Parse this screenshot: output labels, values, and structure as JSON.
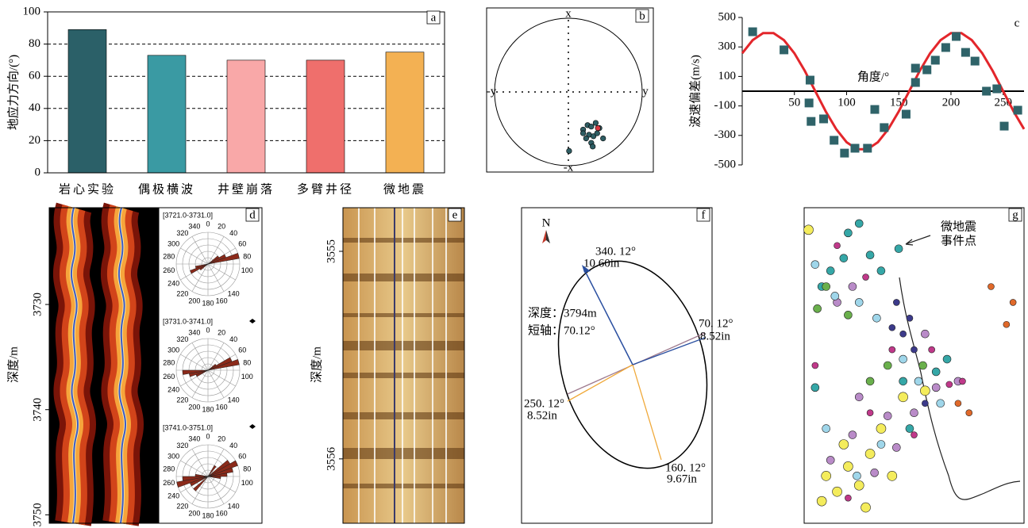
{
  "chart_data": [
    {
      "type": "bar",
      "label": "a",
      "ylabel": "地应力方向/(°)",
      "categories": [
        "岩心实验",
        "偶极横波",
        "井壁崩落",
        "多臂井径",
        "微地震"
      ],
      "values": [
        89,
        73,
        70,
        70,
        75
      ],
      "colors": [
        "#2b6068",
        "#3a9aa3",
        "#f9a8a8",
        "#ef6f6c",
        "#f3b153"
      ],
      "ylim": [
        0,
        100
      ],
      "yticks": [
        0,
        20,
        40,
        60,
        80,
        100
      ],
      "grid": true
    },
    {
      "type": "stereonet",
      "label": "b",
      "axis_labels": [
        "x",
        "-x",
        "y",
        "-y"
      ],
      "series": [
        {
          "color": "#2e5d63",
          "x": [
            0.2,
            0.26,
            0.31,
            0.37,
            0.28,
            0.24,
            0.34,
            0.39,
            0.31,
            0.2,
            0.42,
            0.47,
            0.33,
            0.01
          ],
          "values": [
            -0.51,
            -0.45,
            -0.47,
            -0.42,
            -0.58,
            -0.63,
            -0.6,
            -0.56,
            -0.69,
            -0.56,
            -0.49,
            -0.63,
            -0.74,
            -0.8
          ]
        },
        {
          "color": "#d9363e",
          "x": [
            0.4
          ],
          "values": [
            -0.49
          ]
        }
      ]
    },
    {
      "type": "scatter",
      "label": "c",
      "ylabel": "波速偏差(m/s)",
      "xlabel": "角度/°",
      "xlim": [
        0,
        270
      ],
      "xticks": [
        50,
        100,
        150,
        200,
        250
      ],
      "ylim": [
        -500,
        500
      ],
      "yticks": [
        -500,
        -300,
        -100,
        100,
        300,
        500
      ],
      "series": [
        {
          "color": "#2f6369",
          "x": [
            10,
            40,
            65,
            64,
            66,
            78,
            88,
            98,
            108,
            120,
            127,
            136,
            157,
            166,
            166,
            177,
            185,
            195,
            205,
            214,
            223,
            234,
            244,
            251,
            264
          ],
          "values": [
            403,
            280,
            75,
            -80,
            -205,
            -188,
            -333,
            -420,
            -387,
            -387,
            -124,
            -247,
            -156,
            59,
            156,
            145,
            210,
            296,
            371,
            263,
            204,
            0,
            16,
            -237,
            -129
          ]
        }
      ],
      "fit": {
        "color": "#e3262b",
        "x": [
          0,
          10,
          20,
          30,
          40,
          50,
          60,
          70,
          80,
          90,
          100,
          110,
          120,
          130,
          140,
          150,
          160,
          170,
          180,
          190,
          200,
          210,
          220,
          230,
          240,
          250,
          260,
          270
        ],
        "values": [
          257,
          346,
          394,
          394,
          346,
          257,
          137,
          0,
          -137,
          -257,
          -346,
          -394,
          -394,
          -346,
          -257,
          -137,
          0,
          137,
          257,
          346,
          394,
          394,
          346,
          257,
          137,
          0,
          -137,
          -257
        ]
      }
    },
    {
      "type": "image-log",
      "label": "d",
      "ylabel": "深度/m",
      "ylim": [
        3720.8,
        3750.8
      ],
      "yticks": [
        3730,
        3740,
        3750
      ],
      "rose": {
        "rlim": [
          0,
          5
        ],
        "color": "#8b2a1a",
        "angle_labels": [
          0,
          20,
          40,
          60,
          80,
          100,
          140,
          160,
          180,
          200,
          220,
          240,
          260,
          280,
          300,
          320,
          340
        ],
        "diagrams": [
          {
            "title": "[3721.0-3731.0]",
            "angles": [
              55,
              65,
              75,
              235,
              245,
              255
            ],
            "values": [
              2,
              3,
              5,
              1.5,
              3,
              2
            ]
          },
          {
            "title": "[3731.0-3741.0]",
            "angles": [
              55,
              65,
              75,
              245,
              255,
              265
            ],
            "values": [
              1.5,
              4,
              5,
              2,
              3,
              4
            ]
          },
          {
            "title": "[3741.0-3751.0]",
            "angles": [
              35,
              55,
              65,
              75,
              85,
              95,
              225,
              245,
              255,
              265,
              275
            ],
            "values": [
              2,
              4,
              5,
              4,
              3,
              2,
              3,
              3,
              5,
              4,
              2
            ]
          }
        ]
      }
    },
    {
      "type": "image-log",
      "label": "e",
      "ylabel": "深度/m",
      "ylim": [
        3554.79,
        3556.31
      ],
      "yticks": [
        3555,
        3556
      ]
    },
    {
      "type": "diagram",
      "label": "f",
      "annotations": [
        "N",
        "340. 12°",
        "10.60in",
        "深度：3794m",
        "短轴：70.12°",
        "70. 12°",
        "8.52in",
        "250. 12°",
        "8.52in",
        "160. 12°",
        "9.67in"
      ]
    },
    {
      "type": "map",
      "label": "g",
      "annotations": [
        "微地震",
        "事件点"
      ],
      "series": [
        {
          "color": "#f4ec5c",
          "size": 6,
          "x": [
            10,
            15,
            20,
            25,
            30,
            18,
            35,
            45,
            55,
            8,
            40,
            28,
            2
          ],
          "values": [
            85,
            90,
            82,
            88,
            78,
            75,
            70,
            60,
            58,
            93,
            85,
            95,
            7
          ]
        },
        {
          "color": "#b98bc8",
          "size": 5,
          "x": [
            12,
            22,
            32,
            42,
            50,
            60,
            70,
            25,
            38,
            15,
            22,
            55
          ],
          "values": [
            80,
            72,
            84,
            76,
            65,
            57,
            55,
            60,
            66,
            30,
            25,
            40
          ]
        },
        {
          "color": "#35a7a7",
          "size": 5,
          "x": [
            20,
            25,
            12,
            30,
            8,
            35,
            45,
            60,
            48,
            18,
            65,
            43,
            5
          ],
          "values": [
            8,
            5,
            20,
            15,
            25,
            20,
            55,
            52,
            70,
            16,
            48,
            13,
            57
          ]
        },
        {
          "color": "#c0398a",
          "size": 4,
          "x": [
            28,
            15,
            40,
            58,
            72,
            30,
            20,
            50,
            66,
            5
          ],
          "values": [
            22,
            12,
            45,
            45,
            55,
            65,
            92,
            72,
            56,
            50
          ]
        },
        {
          "color": "#9fd6ea",
          "size": 5,
          "x": [
            5,
            14,
            25,
            33,
            45,
            52,
            35,
            10,
            24,
            62
          ],
          "values": [
            18,
            28,
            30,
            35,
            48,
            55,
            75,
            70,
            85,
            62
          ]
        },
        {
          "color": "#6ab04c",
          "size": 5,
          "x": [
            10,
            20,
            6,
            38,
            54,
            30
          ],
          "values": [
            25,
            34,
            32,
            50,
            50,
            55
          ]
        },
        {
          "color": "#3c3a8a",
          "size": 4,
          "x": [
            45,
            50,
            40,
            42,
            48,
            55
          ],
          "values": [
            40,
            45,
            38,
            30,
            35,
            62
          ]
        },
        {
          "color": "#e0692a",
          "size": 4,
          "x": [
            85,
            70,
            75,
            95,
            92
          ],
          "values": [
            25,
            62,
            65,
            30,
            37
          ]
        }
      ]
    }
  ]
}
